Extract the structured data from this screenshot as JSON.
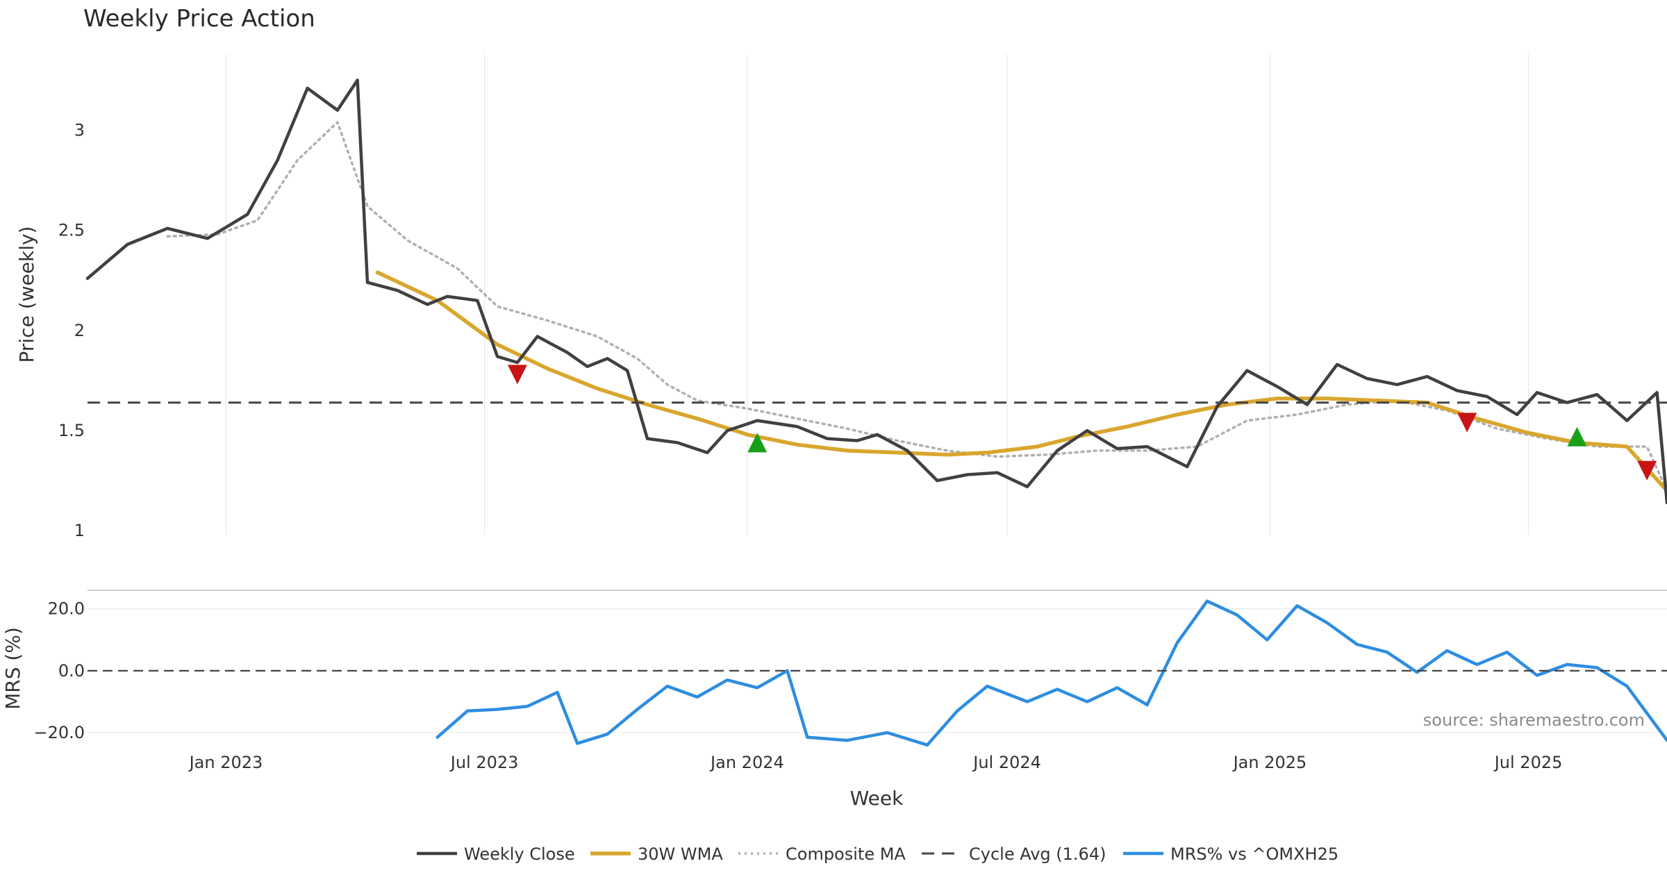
{
  "chart_data": {
    "type": "line",
    "title": "Weekly Price Action",
    "xlabel": "Week",
    "source_note": "source: sharemaestro.com",
    "x_ticks": [
      "Jan 2023",
      "Jul 2023",
      "Jan 2024",
      "Jul 2024",
      "Jan 2025",
      "Jul 2025"
    ],
    "x_range": [
      "2022-09-26",
      "2025-10-06"
    ],
    "legend_position": "bottom-center",
    "grid": true,
    "panels": [
      {
        "name": "price",
        "ylabel": "Price (weekly)",
        "ylim": [
          0.98,
          3.38
        ],
        "y_ticks": [
          1,
          1.5,
          2,
          2.5,
          3
        ],
        "y_tick_labels": [
          "1",
          "1.5",
          "2",
          "2.5",
          "3"
        ]
      },
      {
        "name": "mrs",
        "ylabel": "MRS (%)",
        "ylim": [
          -24.5,
          26
        ],
        "y_ticks": [
          -20,
          0,
          20
        ],
        "y_tick_labels": [
          "−20.0",
          "0.0",
          "20.0"
        ]
      }
    ],
    "series": [
      {
        "name": "Weekly Close",
        "panel": "price",
        "color": "#404040",
        "style": "solid",
        "values": [
          [
            "2022-09-26",
            2.26
          ],
          [
            "2022-10-24",
            2.43
          ],
          [
            "2022-11-21",
            2.51
          ],
          [
            "2022-12-19",
            2.46
          ],
          [
            "2023-01-16",
            2.58
          ],
          [
            "2023-02-06",
            2.85
          ],
          [
            "2023-02-27",
            3.21
          ],
          [
            "2023-03-20",
            3.1
          ],
          [
            "2023-04-03",
            3.25
          ],
          [
            "2023-04-10",
            2.24
          ],
          [
            "2023-05-01",
            2.2
          ],
          [
            "2023-05-22",
            2.13
          ],
          [
            "2023-06-05",
            2.17
          ],
          [
            "2023-06-26",
            2.15
          ],
          [
            "2023-07-10",
            1.87
          ],
          [
            "2023-07-24",
            1.84
          ],
          [
            "2023-08-07",
            1.97
          ],
          [
            "2023-08-28",
            1.89
          ],
          [
            "2023-09-11",
            1.82
          ],
          [
            "2023-09-25",
            1.86
          ],
          [
            "2023-10-09",
            1.8
          ],
          [
            "2023-10-23",
            1.46
          ],
          [
            "2023-11-13",
            1.44
          ],
          [
            "2023-12-04",
            1.39
          ],
          [
            "2023-12-18",
            1.5
          ],
          [
            "2024-01-08",
            1.55
          ],
          [
            "2024-02-05",
            1.52
          ],
          [
            "2024-02-26",
            1.46
          ],
          [
            "2024-03-18",
            1.45
          ],
          [
            "2024-04-01",
            1.48
          ],
          [
            "2024-04-22",
            1.4
          ],
          [
            "2024-05-13",
            1.25
          ],
          [
            "2024-06-03",
            1.28
          ],
          [
            "2024-06-24",
            1.29
          ],
          [
            "2024-07-15",
            1.22
          ],
          [
            "2024-08-05",
            1.4
          ],
          [
            "2024-08-26",
            1.5
          ],
          [
            "2024-09-16",
            1.41
          ],
          [
            "2024-10-07",
            1.42
          ],
          [
            "2024-11-04",
            1.32
          ],
          [
            "2024-11-25",
            1.62
          ],
          [
            "2024-12-16",
            1.8
          ],
          [
            "2025-01-06",
            1.72
          ],
          [
            "2025-01-27",
            1.63
          ],
          [
            "2025-02-17",
            1.83
          ],
          [
            "2025-03-10",
            1.76
          ],
          [
            "2025-03-31",
            1.73
          ],
          [
            "2025-04-21",
            1.77
          ],
          [
            "2025-05-12",
            1.7
          ],
          [
            "2025-06-02",
            1.67
          ],
          [
            "2025-06-23",
            1.58
          ],
          [
            "2025-07-07",
            1.69
          ],
          [
            "2025-07-28",
            1.64
          ],
          [
            "2025-08-18",
            1.68
          ],
          [
            "2025-09-08",
            1.55
          ],
          [
            "2025-09-29",
            1.69
          ],
          [
            "2025-10-06",
            1.14
          ]
        ]
      },
      {
        "name": "30W WMA",
        "panel": "price",
        "color": "#d9a62e",
        "style": "solid",
        "values": [
          [
            "2023-04-17",
            2.29
          ],
          [
            "2023-05-29",
            2.15
          ],
          [
            "2023-07-10",
            1.93
          ],
          [
            "2023-08-14",
            1.81
          ],
          [
            "2023-09-18",
            1.71
          ],
          [
            "2023-10-23",
            1.63
          ],
          [
            "2023-11-27",
            1.56
          ],
          [
            "2024-01-01",
            1.48
          ],
          [
            "2024-02-05",
            1.43
          ],
          [
            "2024-03-11",
            1.4
          ],
          [
            "2024-04-15",
            1.39
          ],
          [
            "2024-05-20",
            1.38
          ],
          [
            "2024-06-17",
            1.39
          ],
          [
            "2024-07-22",
            1.42
          ],
          [
            "2024-08-19",
            1.47
          ],
          [
            "2024-09-23",
            1.52
          ],
          [
            "2024-10-28",
            1.58
          ],
          [
            "2024-12-02",
            1.63
          ],
          [
            "2025-01-06",
            1.66
          ],
          [
            "2025-02-10",
            1.66
          ],
          [
            "2025-03-17",
            1.65
          ],
          [
            "2025-04-21",
            1.64
          ],
          [
            "2025-05-26",
            1.56
          ],
          [
            "2025-06-30",
            1.49
          ],
          [
            "2025-08-04",
            1.44
          ],
          [
            "2025-09-08",
            1.42
          ],
          [
            "2025-10-06",
            1.2
          ]
        ]
      },
      {
        "name": "Composite MA",
        "panel": "price",
        "color": "#b0b0b0",
        "style": "dotted",
        "values": [
          [
            "2022-11-21",
            2.47
          ],
          [
            "2022-12-26",
            2.48
          ],
          [
            "2023-01-23",
            2.55
          ],
          [
            "2023-02-20",
            2.85
          ],
          [
            "2023-03-20",
            3.04
          ],
          [
            "2023-04-10",
            2.62
          ],
          [
            "2023-05-08",
            2.45
          ],
          [
            "2023-06-12",
            2.31
          ],
          [
            "2023-07-10",
            2.12
          ],
          [
            "2023-08-14",
            2.05
          ],
          [
            "2023-09-18",
            1.97
          ],
          [
            "2023-10-16",
            1.86
          ],
          [
            "2023-11-06",
            1.73
          ],
          [
            "2023-11-27",
            1.65
          ],
          [
            "2024-01-01",
            1.61
          ],
          [
            "2024-02-05",
            1.56
          ],
          [
            "2024-03-11",
            1.51
          ],
          [
            "2024-04-15",
            1.45
          ],
          [
            "2024-05-20",
            1.4
          ],
          [
            "2024-06-24",
            1.37
          ],
          [
            "2024-07-29",
            1.38
          ],
          [
            "2024-09-02",
            1.4
          ],
          [
            "2024-10-07",
            1.4
          ],
          [
            "2024-11-11",
            1.42
          ],
          [
            "2024-12-16",
            1.55
          ],
          [
            "2025-01-20",
            1.58
          ],
          [
            "2025-02-24",
            1.63
          ],
          [
            "2025-03-31",
            1.65
          ],
          [
            "2025-05-05",
            1.6
          ],
          [
            "2025-06-09",
            1.51
          ],
          [
            "2025-07-14",
            1.46
          ],
          [
            "2025-08-18",
            1.42
          ],
          [
            "2025-09-22",
            1.42
          ],
          [
            "2025-10-06",
            1.2
          ]
        ]
      },
      {
        "name": "Cycle Avg (1.64)",
        "panel": "price",
        "color": "#444444",
        "style": "dashed",
        "constant": 1.64
      },
      {
        "name": "MRS% vs ^OMXH25",
        "panel": "mrs",
        "color": "#2e8de0",
        "style": "solid",
        "values": [
          [
            "2023-05-29",
            -21.5
          ],
          [
            "2023-06-19",
            -13.0
          ],
          [
            "2023-07-10",
            -12.5
          ],
          [
            "2023-07-31",
            -11.5
          ],
          [
            "2023-08-21",
            -7.0
          ],
          [
            "2023-09-04",
            -23.5
          ],
          [
            "2023-09-25",
            -20.5
          ],
          [
            "2023-10-16",
            -12.5
          ],
          [
            "2023-11-06",
            -5.0
          ],
          [
            "2023-11-27",
            -8.5
          ],
          [
            "2023-12-18",
            -3.0
          ],
          [
            "2024-01-08",
            -5.5
          ],
          [
            "2024-01-29",
            0.0
          ],
          [
            "2024-02-12",
            -21.5
          ],
          [
            "2024-03-11",
            -22.5
          ],
          [
            "2024-04-08",
            -20.0
          ],
          [
            "2024-05-06",
            -24.0
          ],
          [
            "2024-05-27",
            -13.0
          ],
          [
            "2024-06-17",
            -5.0
          ],
          [
            "2024-07-15",
            -10.0
          ],
          [
            "2024-08-05",
            -6.0
          ],
          [
            "2024-08-26",
            -10.0
          ],
          [
            "2024-09-16",
            -5.5
          ],
          [
            "2024-10-07",
            -11.0
          ],
          [
            "2024-10-28",
            9.0
          ],
          [
            "2024-11-18",
            22.5
          ],
          [
            "2024-12-09",
            18.0
          ],
          [
            "2024-12-30",
            10.0
          ],
          [
            "2025-01-20",
            21.0
          ],
          [
            "2025-02-10",
            15.5
          ],
          [
            "2025-03-03",
            8.5
          ],
          [
            "2025-03-24",
            6.0
          ],
          [
            "2025-04-14",
            -0.5
          ],
          [
            "2025-05-05",
            6.5
          ],
          [
            "2025-05-26",
            2.0
          ],
          [
            "2025-06-16",
            6.0
          ],
          [
            "2025-07-07",
            -1.5
          ],
          [
            "2025-07-28",
            2.0
          ],
          [
            "2025-08-18",
            1.0
          ],
          [
            "2025-09-08",
            -5.0
          ],
          [
            "2025-10-06",
            -22.5
          ]
        ]
      }
    ],
    "markers": [
      {
        "type": "sell",
        "date": "2023-07-24",
        "value": 1.78,
        "color": "#c81414"
      },
      {
        "type": "buy",
        "date": "2024-01-08",
        "value": 1.44,
        "color": "#18a018"
      },
      {
        "type": "sell",
        "date": "2025-05-19",
        "value": 1.54,
        "color": "#c81414"
      },
      {
        "type": "buy",
        "date": "2025-08-04",
        "value": 1.47,
        "color": "#18a018"
      },
      {
        "type": "sell",
        "date": "2025-09-22",
        "value": 1.3,
        "color": "#c81414"
      }
    ]
  }
}
